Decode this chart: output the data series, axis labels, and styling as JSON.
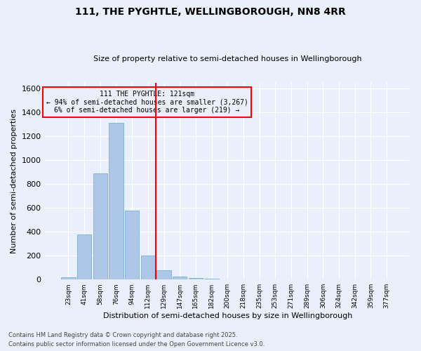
{
  "title": "111, THE PYGHTLE, WELLINGBOROUGH, NN8 4RR",
  "subtitle": "Size of property relative to semi-detached houses in Wellingborough",
  "xlabel": "Distribution of semi-detached houses by size in Wellingborough",
  "ylabel": "Number of semi-detached properties",
  "categories": [
    "23sqm",
    "41sqm",
    "58sqm",
    "76sqm",
    "94sqm",
    "112sqm",
    "129sqm",
    "147sqm",
    "165sqm",
    "182sqm",
    "200sqm",
    "218sqm",
    "235sqm",
    "253sqm",
    "271sqm",
    "289sqm",
    "306sqm",
    "324sqm",
    "342sqm",
    "359sqm",
    "377sqm"
  ],
  "values": [
    20,
    380,
    890,
    1310,
    575,
    200,
    75,
    25,
    15,
    5,
    2,
    0,
    0,
    0,
    0,
    0,
    0,
    0,
    0,
    0,
    0
  ],
  "bar_color": "#aec6e8",
  "bar_edge_color": "#7aafd4",
  "vline_x_index": 5.5,
  "vline_color": "red",
  "annotation_title": "111 THE PYGHTLE: 121sqm",
  "annotation_line1": "← 94% of semi-detached houses are smaller (3,267)",
  "annotation_line2": "6% of semi-detached houses are larger (219) →",
  "annotation_box_color": "red",
  "ylim": [
    0,
    1650
  ],
  "yticks": [
    0,
    200,
    400,
    600,
    800,
    1000,
    1200,
    1400,
    1600
  ],
  "background_color": "#eaf0fb",
  "grid_color": "#ffffff",
  "footer1": "Contains HM Land Registry data © Crown copyright and database right 2025.",
  "footer2": "Contains public sector information licensed under the Open Government Licence v3.0."
}
